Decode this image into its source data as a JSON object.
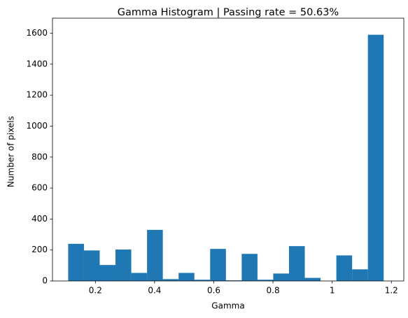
{
  "chart_data": {
    "type": "histogram",
    "title": "Gamma Histogram | Passing rate = 50.63%",
    "x_label": "Gamma",
    "y_label": "Number of pixels",
    "bins": [
      0.108,
      0.1613,
      0.2146,
      0.2679,
      0.3212,
      0.3745,
      0.4278,
      0.4811,
      0.5344,
      0.5877,
      0.641,
      0.6943,
      0.7476,
      0.8009,
      0.8542,
      0.9075,
      0.9608,
      1.0141,
      1.0674,
      1.1207,
      1.174
    ],
    "values": [
      240,
      197,
      103,
      203,
      52,
      330,
      12,
      52,
      8,
      207,
      4,
      175,
      8,
      48,
      225,
      20,
      0,
      165,
      75,
      1590
    ],
    "color": "#1f77b4",
    "xlim": [
      0.055,
      1.242
    ],
    "xticks": [
      0.2,
      0.4,
      0.6,
      0.8,
      1.0,
      1.2
    ],
    "ylim": [
      0,
      1670
    ],
    "yticks": [
      0,
      200,
      400,
      600,
      800,
      1000,
      1200,
      1400,
      1600
    ],
    "grid": false
  }
}
